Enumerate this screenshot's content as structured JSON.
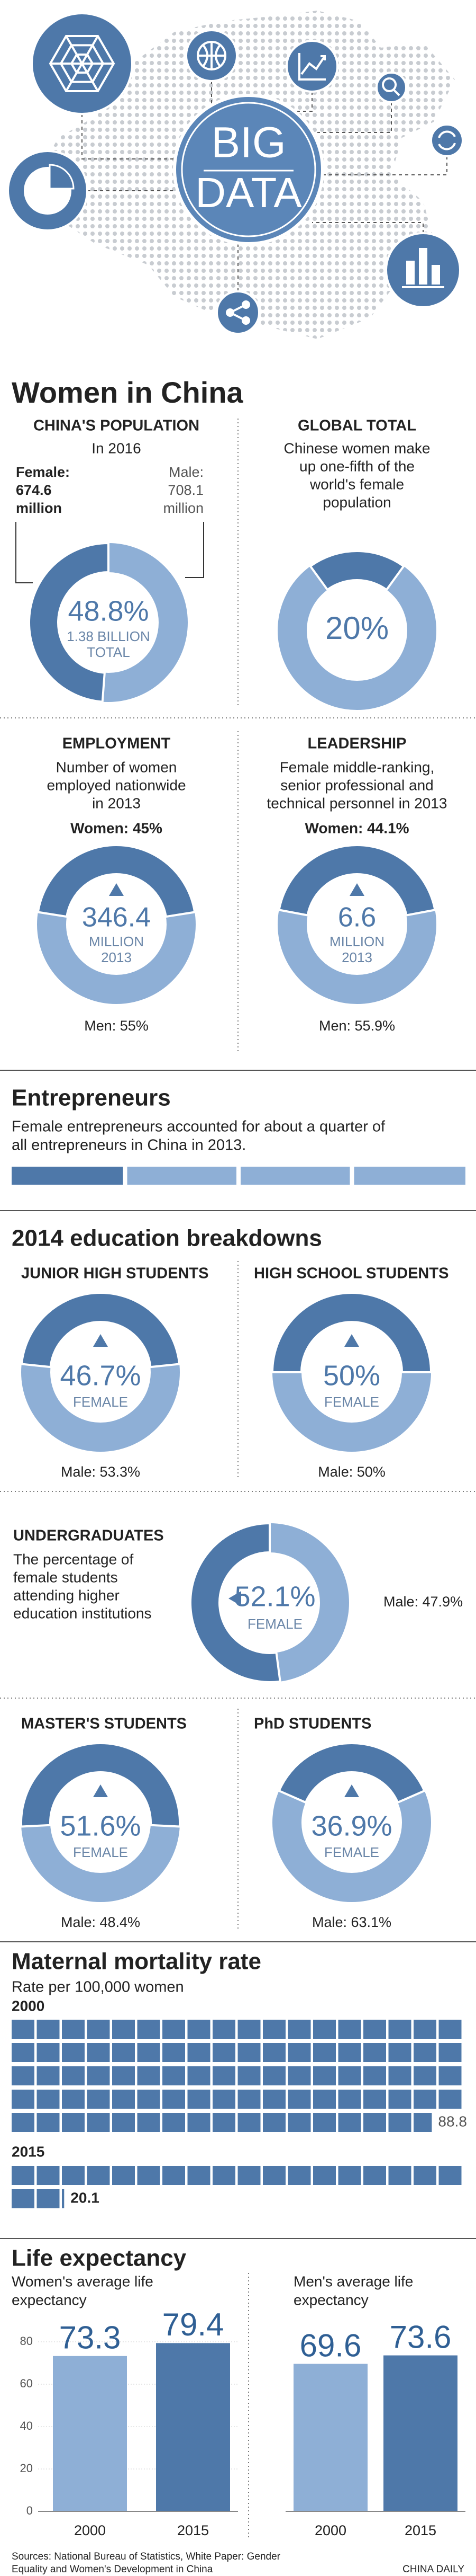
{
  "header": {
    "big": "BIG",
    "data": "DATA"
  },
  "title": "Women in China",
  "sections": {
    "education": "2014 education breakdowns",
    "life": "Life expectancy"
  },
  "chart_data": [
    {
      "type": "donut",
      "title": "CHINA'S POPULATION",
      "subtitle": [
        "In 2016"
      ],
      "left_label": [
        "Female:",
        "674.6",
        "million"
      ],
      "right_label": [
        "Male:",
        "708.1",
        "million"
      ],
      "values": [
        48.8
      ],
      "value_labels": [
        "48.8%"
      ],
      "center_lines": [
        "1.38 BILLION",
        "TOTAL"
      ],
      "color": "#4e78a9",
      "track_color": "#8eafd6"
    },
    {
      "type": "donut",
      "title": "GLOBAL TOTAL",
      "subtitle": [
        "Chinese women make",
        "up one-fifth of the",
        "world's female",
        "population"
      ],
      "values": [
        20
      ],
      "value_labels": [
        "20%"
      ],
      "color": "#4e78a9",
      "track_color": "#8eafd6"
    },
    {
      "type": "donut",
      "title": "EMPLOYMENT",
      "subtitle": [
        "Number of women",
        "employed nationwide",
        "in 2013"
      ],
      "values": [
        45
      ],
      "value_labels": [
        "Women: 45%"
      ],
      "center_lines": [
        "346.4",
        "MILLION",
        "2013"
      ],
      "bottom_label": "Men: 55%",
      "color": "#4e78a9",
      "track_color": "#8eafd6"
    },
    {
      "type": "donut",
      "title": "LEADERSHIP",
      "subtitle": [
        "Female middle-ranking,",
        "senior professional and",
        "technical personnel in 2013"
      ],
      "values": [
        44.1
      ],
      "value_labels": [
        "Women: 44.1%"
      ],
      "center_lines": [
        "6.6",
        "MILLION",
        "2013"
      ],
      "bottom_label": "Men: 55.9%",
      "color": "#4e78a9",
      "track_color": "#8eafd6"
    },
    {
      "type": "donut",
      "title": "JUNIOR HIGH STUDENTS",
      "values": [
        46.7
      ],
      "value_labels": [
        "46.7%"
      ],
      "center_lines": [
        "FEMALE"
      ],
      "bottom_label": "Male: 53.3%",
      "color": "#4e78a9",
      "track_color": "#8eafd6"
    },
    {
      "type": "donut",
      "title": "HIGH SCHOOL STUDENTS",
      "values": [
        50
      ],
      "value_labels": [
        "50%"
      ],
      "center_lines": [
        "FEMALE"
      ],
      "bottom_label": "Male: 50%",
      "color": "#4e78a9",
      "track_color": "#8eafd6"
    },
    {
      "type": "donut",
      "title": "UNDERGRADUATES",
      "subtitle": [
        "The percentage of",
        "female students",
        "attending higher",
        "education institutions"
      ],
      "values": [
        52.1
      ],
      "value_labels": [
        "52.1%"
      ],
      "center_lines": [
        "FEMALE"
      ],
      "bottom_label": "Male: 47.9%",
      "color": "#4e78a9",
      "track_color": "#8eafd6"
    },
    {
      "type": "donut",
      "title": "MASTER'S STUDENTS",
      "values": [
        51.6
      ],
      "value_labels": [
        "51.6%"
      ],
      "center_lines": [
        "FEMALE"
      ],
      "bottom_label": "Male: 48.4%",
      "color": "#4e78a9",
      "track_color": "#8eafd6"
    },
    {
      "type": "donut",
      "title": "PhD STUDENTS",
      "values": [
        36.9
      ],
      "value_labels": [
        "36.9%"
      ],
      "center_lines": [
        "FEMALE"
      ],
      "bottom_label": "Male: 63.1%",
      "color": "#4e78a9",
      "track_color": "#8eafd6"
    },
    {
      "type": "segments",
      "title": "Entrepreneurs",
      "subtitle": [
        "Female entrepreneurs accounted for about a quarter of",
        "all entrepreneurs in China in 2013."
      ],
      "values": [
        25
      ],
      "xlim": [
        0,
        100
      ],
      "color": "#4e78a9",
      "track_color": "#8eafd6"
    },
    {
      "type": "waffle",
      "title": "Maternal mortality rate",
      "subtitle": [
        "Rate per 100,000 women"
      ],
      "categories": [
        "2000",
        "2015"
      ],
      "values": [
        88.8,
        20.1
      ],
      "color": "#4e78a9"
    },
    {
      "type": "bar",
      "subtitle": [
        "Women's average life",
        "expectancy"
      ],
      "categories": [
        "2000",
        "2015"
      ],
      "values": [
        73.3,
        79.4
      ],
      "colors": [
        "#8eafd6",
        "#4e78a9"
      ],
      "ylim": [
        0,
        85
      ],
      "yticks": [
        0,
        20,
        40,
        60,
        80
      ],
      "grid": true
    },
    {
      "type": "bar",
      "subtitle": [
        "Men's average life",
        "expectancy"
      ],
      "categories": [
        "2000",
        "2015"
      ],
      "values": [
        69.6,
        73.6
      ],
      "colors": [
        "#8eafd6",
        "#4e78a9"
      ],
      "ylim": [
        0,
        85
      ]
    }
  ],
  "footer": {
    "sources": [
      "Sources: National Bureau of Statistics, White Paper: Gender",
      "Equality and Women's Development in China"
    ],
    "credit": "CHINA DAILY"
  }
}
